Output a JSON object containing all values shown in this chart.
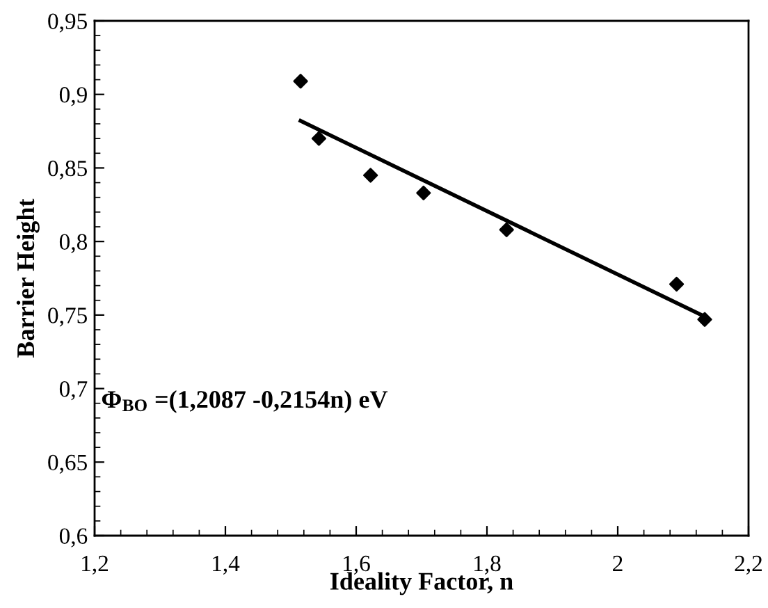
{
  "chart_data": {
    "type": "scatter",
    "xlabel": "Ideality Factor, n",
    "ylabel": "Barrier Height",
    "annotations": [
      "Φ$_{BO}$ =(1,2087 -0,2154n) eV"
    ],
    "series": [
      {
        "color": "#000000",
        "marker": "diamond",
        "x": [
          1.515,
          1.543,
          1.622,
          1.703,
          1.83,
          2.09,
          2.133
        ],
        "values": [
          0.909,
          0.87,
          0.845,
          0.833,
          0.808,
          0.771,
          0.747
        ]
      },
      {
        "type": "line",
        "color": "#000000",
        "marker": "none",
        "line_style": "solid",
        "x": [
          1.515,
          2.133
        ],
        "values": [
          0.882,
          0.749
        ]
      }
    ],
    "xlim": [
      1.2,
      2.2
    ],
    "ylim": [
      0.6,
      0.95
    ],
    "xticks": [
      {
        "value": 1.2,
        "label": "1,2"
      },
      {
        "value": 1.4,
        "label": "1,4"
      },
      {
        "value": 1.6,
        "label": "1,6"
      },
      {
        "value": 1.8,
        "label": "1,8"
      },
      2,
      {
        "value": 2.2,
        "label": "2,2"
      }
    ],
    "yticks": [
      {
        "value": 0.6,
        "label": "0,6"
      },
      {
        "value": 0.65,
        "label": "0,65"
      },
      {
        "value": 0.7,
        "label": "0,7"
      },
      {
        "value": 0.75,
        "label": "0,75"
      },
      {
        "value": 0.8,
        "label": "0,8"
      },
      {
        "value": 0.85,
        "label": "0,85"
      },
      {
        "value": 0.9,
        "label": "0,9"
      },
      {
        "value": 0.95,
        "label": "0,95"
      }
    ],
    "grid": false,
    "legend": false
  }
}
